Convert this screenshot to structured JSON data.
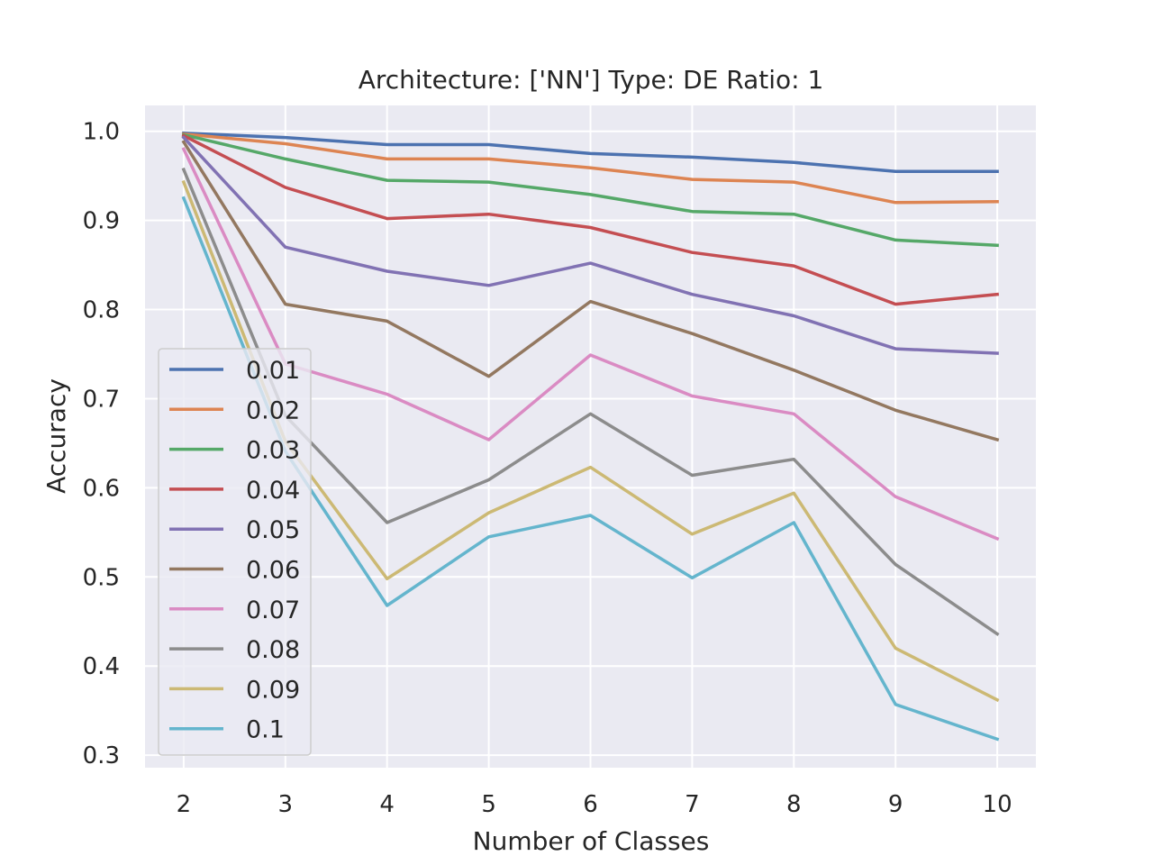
{
  "chart_data": {
    "type": "line",
    "title": "Architecture: ['NN'] Type: DE Ratio: 1",
    "xlabel": "Number of Classes",
    "ylabel": "Accuracy",
    "x": [
      2,
      3,
      4,
      5,
      6,
      7,
      8,
      9,
      10
    ],
    "xlim": [
      1.62,
      10.38
    ],
    "ylim": [
      0.286,
      1.029
    ],
    "xticks": [
      2,
      3,
      4,
      5,
      6,
      7,
      8,
      9,
      10
    ],
    "yticks": [
      0.3,
      0.4,
      0.5,
      0.6,
      0.7,
      0.8,
      0.9,
      1.0
    ],
    "ytick_labels": [
      "0.3",
      "0.4",
      "0.5",
      "0.6",
      "0.7",
      "0.8",
      "0.9",
      "1.0"
    ],
    "grid": true,
    "legend_position": "lower-left",
    "colors": {
      "plot_background": "#eaeaf2",
      "grid": "#ffffff",
      "text": "#262626"
    },
    "series": [
      {
        "name": "0.01",
        "color": "#4c72b0",
        "values": [
          0.998,
          0.993,
          0.985,
          0.985,
          0.975,
          0.971,
          0.965,
          0.955,
          0.955
        ]
      },
      {
        "name": "0.02",
        "color": "#dd8452",
        "values": [
          0.997,
          0.986,
          0.969,
          0.969,
          0.959,
          0.946,
          0.943,
          0.92,
          0.921
        ]
      },
      {
        "name": "0.03",
        "color": "#55a868",
        "values": [
          0.996,
          0.969,
          0.945,
          0.943,
          0.929,
          0.91,
          0.907,
          0.878,
          0.872
        ]
      },
      {
        "name": "0.04",
        "color": "#c44e52",
        "values": [
          0.995,
          0.937,
          0.902,
          0.907,
          0.892,
          0.864,
          0.849,
          0.806,
          0.817
        ]
      },
      {
        "name": "0.05",
        "color": "#8172b3",
        "values": [
          0.993,
          0.87,
          0.843,
          0.827,
          0.852,
          0.817,
          0.793,
          0.756,
          0.751
        ]
      },
      {
        "name": "0.06",
        "color": "#937860",
        "values": [
          0.988,
          0.806,
          0.787,
          0.725,
          0.809,
          0.773,
          0.732,
          0.687,
          0.654
        ]
      },
      {
        "name": "0.07",
        "color": "#da8bc3",
        "values": [
          0.98,
          0.739,
          0.705,
          0.654,
          0.749,
          0.703,
          0.683,
          0.59,
          0.543
        ]
      },
      {
        "name": "0.08",
        "color": "#8c8c8c",
        "values": [
          0.957,
          0.681,
          0.561,
          0.609,
          0.683,
          0.614,
          0.632,
          0.514,
          0.436
        ]
      },
      {
        "name": "0.09",
        "color": "#ccb974",
        "values": [
          0.943,
          0.652,
          0.498,
          0.572,
          0.623,
          0.548,
          0.594,
          0.42,
          0.362
        ]
      },
      {
        "name": "0.1",
        "color": "#64b5cd",
        "values": [
          0.925,
          0.641,
          0.468,
          0.545,
          0.569,
          0.499,
          0.561,
          0.357,
          0.318
        ]
      }
    ]
  }
}
